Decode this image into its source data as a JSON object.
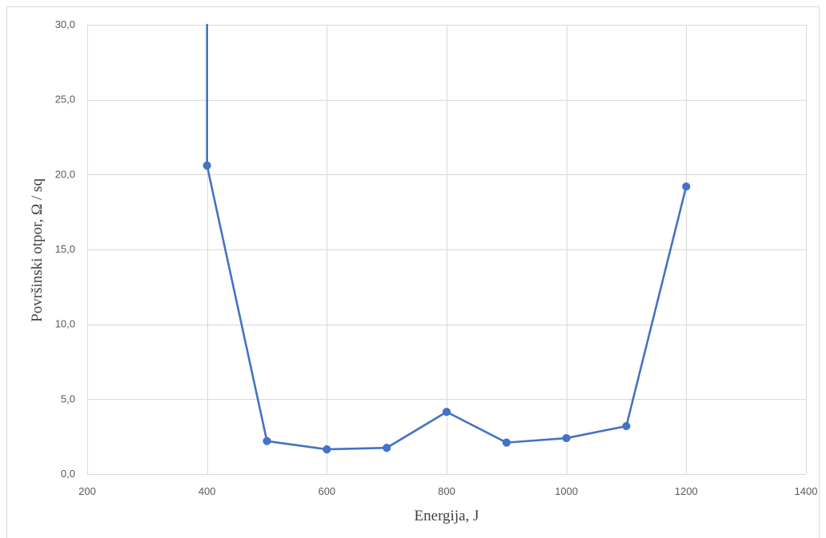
{
  "chart_data": {
    "type": "scatter",
    "mode": "lines+markers",
    "xlabel": "Energija, J",
    "ylabel": "Površinski otpor, Ω / sq",
    "xlim": [
      200,
      1400
    ],
    "ylim": [
      0,
      30
    ],
    "x_ticks": [
      "200",
      "400",
      "600",
      "800",
      "1000",
      "1200",
      "1400"
    ],
    "y_ticks": [
      "0,0",
      "5,0",
      "10,0",
      "15,0",
      "20,0",
      "25,0",
      "30,0"
    ],
    "grid": true,
    "legend": "none",
    "series": [
      {
        "color": "#4472c4",
        "x": [
          400,
          400,
          500,
          600,
          700,
          800,
          900,
          1000,
          1100,
          1200
        ],
        "y": [
          30.0,
          20.6,
          2.2,
          1.65,
          1.75,
          4.15,
          2.1,
          2.4,
          3.2,
          19.2
        ],
        "markers": [
          false,
          true,
          true,
          true,
          true,
          true,
          true,
          true,
          true,
          true
        ],
        "note_first_point_extends_beyond_axis": true
      }
    ]
  }
}
